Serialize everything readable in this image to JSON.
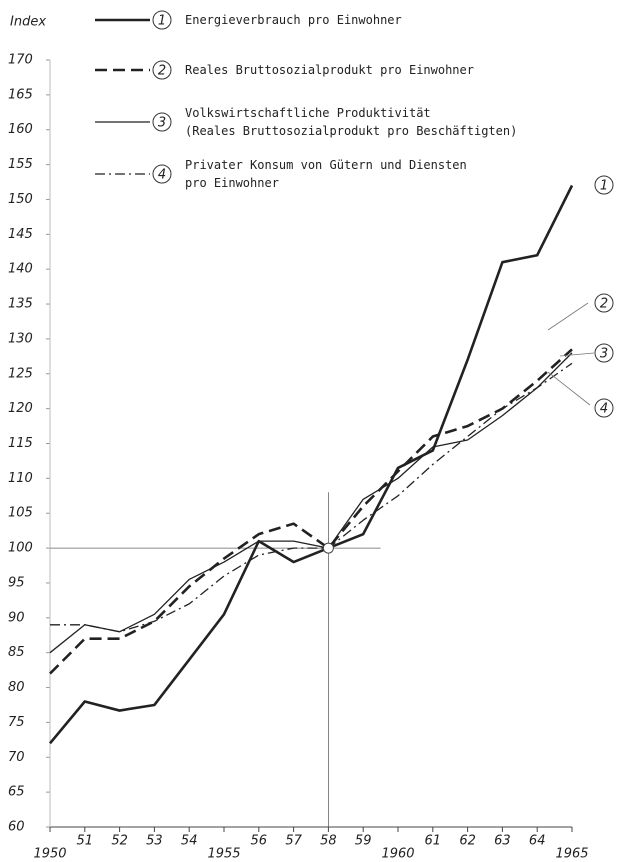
{
  "chart_data": {
    "type": "line",
    "ylabel": "Index",
    "x": [
      1950,
      1951,
      1952,
      1953,
      1954,
      1955,
      1956,
      1957,
      1958,
      1959,
      1960,
      1961,
      1962,
      1963,
      1964,
      1965
    ],
    "xlim": [
      1950,
      1965
    ],
    "xticks": [
      1950,
      {
        "value": 1951,
        "label": "51"
      },
      {
        "value": 1952,
        "label": "52"
      },
      {
        "value": 1953,
        "label": "53"
      },
      {
        "value": 1954,
        "label": "54"
      },
      1955,
      {
        "value": 1956,
        "label": "56"
      },
      {
        "value": 1957,
        "label": "57"
      },
      {
        "value": 1958,
        "label": "58"
      },
      {
        "value": 1959,
        "label": "59"
      },
      1960,
      {
        "value": 1961,
        "label": "61"
      },
      {
        "value": 1962,
        "label": "62"
      },
      {
        "value": 1963,
        "label": "63"
      },
      {
        "value": 1964,
        "label": "64"
      },
      1965
    ],
    "ylim": [
      60,
      170
    ],
    "yticks": [
      60,
      65,
      70,
      75,
      80,
      85,
      90,
      95,
      100,
      105,
      110,
      115,
      120,
      125,
      130,
      135,
      140,
      145,
      150,
      155,
      160,
      165,
      170
    ],
    "reference": {
      "x": 1958,
      "y": 100
    },
    "series": [
      {
        "name": "Energieverbrauch pro Einwohner",
        "marker": "1",
        "color": "#222",
        "dash": "solid",
        "width": 2.6,
        "values": [
          72,
          78,
          76.7,
          77.5,
          84,
          90.5,
          101,
          98,
          100,
          102,
          111.5,
          114,
          127,
          141,
          142,
          152
        ]
      },
      {
        "name": "Reales Bruttosozialprodukt pro Einwohner",
        "marker": "2",
        "color": "#222",
        "dash": "dashed",
        "width": 2.6,
        "values": [
          82,
          87,
          87,
          89.5,
          94.5,
          98.5,
          102,
          103.5,
          100,
          106,
          111,
          116,
          117.5,
          120,
          124,
          128.5
        ]
      },
      {
        "name": "Volkswirtschaftliche Produktivität\n(Reales Bruttosozialprodukt pro Beschäftigten)",
        "marker": "3",
        "color": "#222",
        "dash": "solid",
        "width": 1.3,
        "values": [
          85,
          89,
          88,
          90.5,
          95.5,
          98,
          101,
          101,
          100,
          107,
          110,
          114.5,
          115.5,
          119,
          123,
          128
        ]
      },
      {
        "name": "Privater Konsum von Gütern und Diensten\npro Einwohner",
        "marker": "4",
        "color": "#222",
        "dash": "dashdot",
        "width": 1.3,
        "values": [
          89,
          89,
          88,
          89.5,
          92,
          96,
          99,
          100,
          100,
          104,
          107.5,
          112,
          116,
          120,
          123,
          126.5
        ]
      }
    ]
  }
}
